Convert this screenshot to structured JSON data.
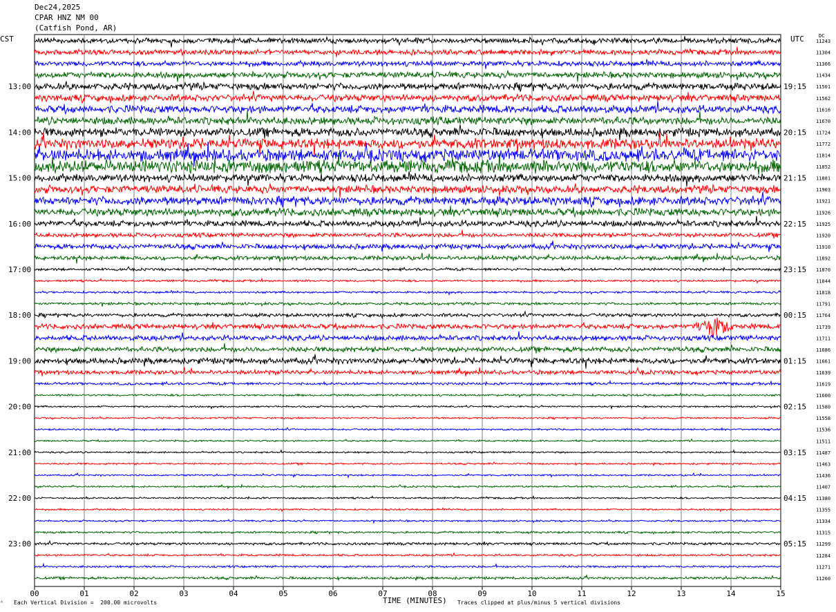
{
  "header": {
    "date": "Dec24,2025",
    "station": "CPAR HNZ NM 00",
    "location": "(Catfish Pond, AR)"
  },
  "labels": {
    "left_tz": "CST",
    "right_tz": "UTC",
    "dc": "DC"
  },
  "footer": {
    "scale_note": "Each Vertical Division =  200.00 microvolts",
    "clip_note": "Traces clipped at plus/minus 5 vertical divisions"
  },
  "chart_data": {
    "type": "line",
    "xlabel": "TIME (MINUTES)",
    "xlim": [
      0,
      15
    ],
    "x_ticks": [
      "00",
      "01",
      "02",
      "03",
      "04",
      "05",
      "06",
      "07",
      "08",
      "09",
      "10",
      "11",
      "12",
      "13",
      "14",
      "15"
    ],
    "trace_colors": [
      "#000000",
      "#ff0000",
      "#0000ff",
      "#006400"
    ],
    "left_hour_labels": [
      "13:00",
      "14:00",
      "15:00",
      "16:00",
      "17:00",
      "18:00",
      "19:00",
      "20:00",
      "21:00",
      "22:00",
      "23:00"
    ],
    "right_hour_labels": [
      "19:15",
      "20:15",
      "21:15",
      "22:15",
      "23:15",
      "00:15",
      "01:15",
      "02:15",
      "03:15",
      "04:15",
      "05:15"
    ],
    "dc_offsets": [
      11243,
      11304,
      11366,
      11434,
      11501,
      11562,
      11616,
      11670,
      11724,
      11772,
      11814,
      11852,
      11881,
      11903,
      11921,
      11926,
      11925,
      11920,
      11910,
      11892,
      11870,
      11844,
      11818,
      11791,
      11764,
      11739,
      11711,
      11686,
      11661,
      11639,
      11619,
      11600,
      11580,
      11558,
      11536,
      11511,
      11487,
      11463,
      11436,
      11407,
      11380,
      11355,
      11334,
      11315,
      11299,
      11284,
      11271,
      11260
    ],
    "noise_levels": [
      3,
      3,
      3,
      3.5,
      4,
      4,
      4.5,
      4.5,
      5,
      6,
      7,
      7.5,
      4.5,
      4.5,
      5,
      4.5,
      3.5,
      2.5,
      3,
      2.5,
      1.5,
      1.2,
      1.2,
      1.5,
      2,
      3,
      3,
      3,
      3.5,
      2.5,
      1.5,
      1.2,
      1,
      1,
      1,
      1,
      1,
      1,
      1,
      1,
      1,
      1,
      1,
      1.2,
      1.5,
      1.2,
      1.2,
      1.5
    ],
    "event": {
      "trace_index": 25,
      "start_minute": 13.2,
      "peak_minute": 13.6,
      "end_minute": 14.2
    }
  }
}
